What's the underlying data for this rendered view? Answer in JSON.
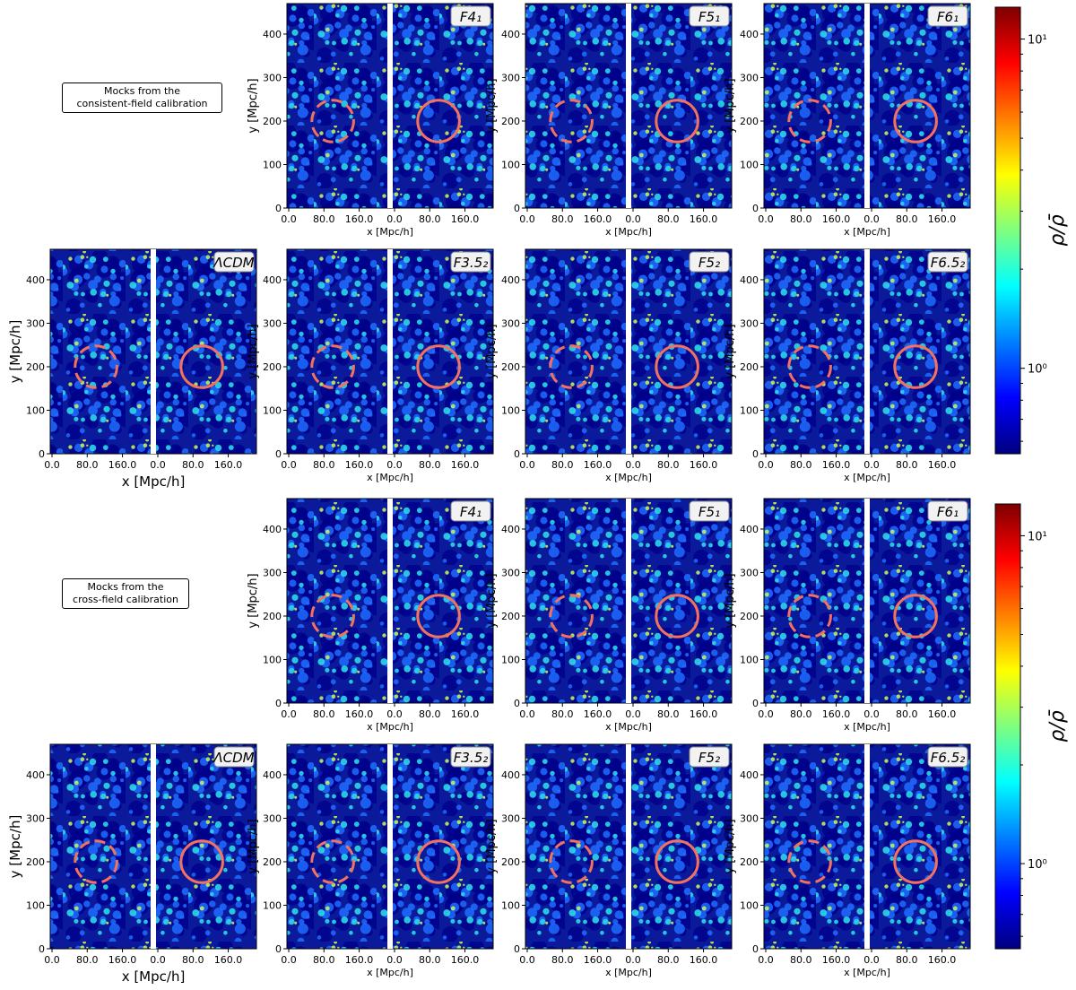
{
  "figure": {
    "notes": [
      {
        "line1": "Mocks from the",
        "line2": "consistent-field calibration"
      },
      {
        "line1": "Mocks from the",
        "line2": "cross-field calibration"
      }
    ],
    "colorbar": {
      "label": "ρ/ρ̄",
      "scale": "log",
      "range": [
        0.55,
        12.5
      ],
      "tick_major": "10¹",
      "tick_minor": "10⁰",
      "colormap": "jet",
      "colors": [
        "#00007f",
        "#0000ff",
        "#007fff",
        "#00ffff",
        "#7fff7f",
        "#ffff00",
        "#ff7f00",
        "#ff0000",
        "#7f0000"
      ]
    },
    "circle_color": "#f4715f"
  },
  "chart_data": {
    "type": "heatmap",
    "quantity": "density contrast ρ/ρ̄ (projected density map, two side-by-side strips per panel)",
    "xlabel": "x [Mpc/h]",
    "ylabel": "y [Mpc/h]",
    "xticks": [
      "0.0",
      "80.0",
      "160.0"
    ],
    "yticks": [
      "0",
      "100",
      "200",
      "300",
      "400"
    ],
    "xlim": [
      0,
      240
    ],
    "ylim": [
      0,
      470
    ],
    "circle_dashed": {
      "center": [
        100,
        200
      ],
      "radius": 50
    },
    "circle_solid": {
      "center": [
        100,
        200
      ],
      "radius": 50
    },
    "rows": [
      {
        "group": "consistent-field calibration",
        "panels": [
          "F4₁",
          "F5₁",
          "F6₁"
        ]
      },
      {
        "group": "consistent-field calibration",
        "panels": [
          "ΛCDM",
          "F3.5₂",
          "F5₂",
          "F6.5₂"
        ]
      },
      {
        "group": "cross-field calibration",
        "panels": [
          "F4₁",
          "F5₁",
          "F6₁"
        ]
      },
      {
        "group": "cross-field calibration",
        "panels": [
          "ΛCDM",
          "F3.5₂",
          "F5₂",
          "F6.5₂"
        ]
      }
    ]
  }
}
